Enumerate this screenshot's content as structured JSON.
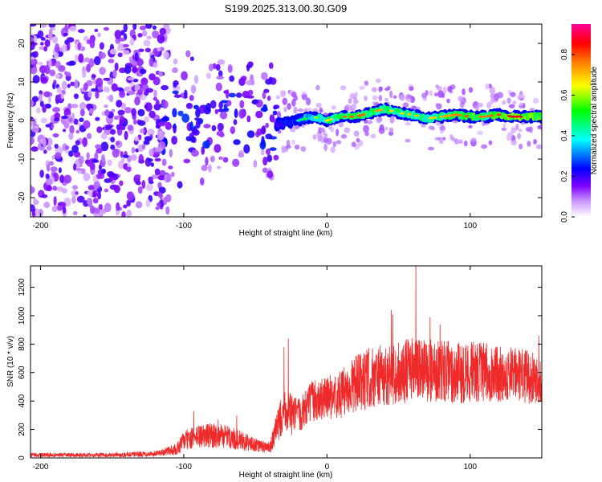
{
  "figure_title": "S199.2025.313.00.30.G09",
  "colors": {
    "snr_line": "#ee2a2a",
    "frame": "#000000"
  },
  "chart_data": [
    {
      "type": "heatmap",
      "title": "S199.2025.313.00.30.G09",
      "xlabel": "Height of straight line (km)",
      "ylabel": "Frequency (Hz)",
      "xlim": [
        -207,
        150
      ],
      "ylim": [
        -25,
        25
      ],
      "xticks": [
        -200,
        -100,
        0,
        100
      ],
      "xtick_labels": [
        "-200",
        "-100",
        "0",
        "100"
      ],
      "yticks": [
        -20,
        -10,
        0,
        10,
        20
      ],
      "ytick_labels": [
        "-20",
        "-10",
        "0",
        "10",
        "20"
      ],
      "colorbar": {
        "label": "Normalized spectral amplitude",
        "range": [
          0.0,
          0.95
        ],
        "ticks": [
          0.0,
          0.2,
          0.4,
          0.6,
          0.8
        ],
        "tick_labels": [
          "0.0",
          "0.2",
          "0.4",
          "0.6",
          "0.8"
        ],
        "colormap": [
          "#ffffff",
          "#cc99ff",
          "#7f00ff",
          "#0000ff",
          "#00ffff",
          "#00ff00",
          "#ffff00",
          "#ff7f00",
          "#ff0000",
          "#ff0099"
        ]
      },
      "ridge": {
        "description": "dominant frequency ridge near 0-2 Hz for heights above -35 km",
        "x": [
          -35,
          -20,
          -10,
          0,
          10,
          20,
          30,
          40,
          50,
          60,
          70,
          80,
          90,
          100,
          110,
          120,
          130,
          140,
          150
        ],
        "y": [
          -1,
          0,
          1,
          0,
          1,
          1,
          2,
          3,
          2,
          1.5,
          0.5,
          1,
          1.5,
          1,
          1,
          1.5,
          1,
          1,
          1
        ],
        "amplitude": [
          0.35,
          0.45,
          0.6,
          0.7,
          0.8,
          0.85,
          0.8,
          0.75,
          0.7,
          0.75,
          0.7,
          0.75,
          0.8,
          0.85,
          0.8,
          0.85,
          0.9,
          0.9,
          0.85
        ]
      }
    },
    {
      "type": "line",
      "xlabel": "Height of straight line (km)",
      "ylabel": "SNR (10 * v/v)",
      "xlim": [
        -207,
        150
      ],
      "ylim": [
        0,
        1350
      ],
      "xticks": [
        -200,
        -100,
        0,
        100
      ],
      "xtick_labels": [
        "-200",
        "-100",
        "0",
        "100"
      ],
      "yticks": [
        0,
        200,
        400,
        600,
        800,
        1000,
        1200
      ],
      "ytick_labels": [
        "0",
        "200",
        "400",
        "600",
        "800",
        "1000",
        "1200"
      ],
      "series": [
        {
          "name": "SNR",
          "color": "#ee2a2a",
          "envelope_x": [
            -207,
            -150,
            -120,
            -105,
            -100,
            -90,
            -80,
            -70,
            -60,
            -50,
            -40,
            -35,
            -30,
            -25,
            -20,
            -10,
            0,
            10,
            20,
            30,
            40,
            50,
            60,
            70,
            80,
            90,
            100,
            110,
            120,
            130,
            140,
            150
          ],
          "envelope_mean": [
            20,
            20,
            30,
            60,
            120,
            150,
            160,
            150,
            120,
            90,
            70,
            200,
            350,
            300,
            300,
            400,
            420,
            450,
            520,
            560,
            580,
            600,
            620,
            610,
            620,
            590,
            610,
            600,
            590,
            590,
            570,
            560
          ],
          "envelope_spread": [
            15,
            15,
            20,
            40,
            70,
            80,
            90,
            80,
            70,
            50,
            40,
            120,
            150,
            150,
            120,
            150,
            150,
            170,
            200,
            220,
            220,
            220,
            230,
            220,
            220,
            220,
            220,
            210,
            200,
            190,
            190,
            180
          ],
          "peaks": [
            {
              "x": -93,
              "y": 330
            },
            {
              "x": -76,
              "y": 270
            },
            {
              "x": -63,
              "y": 300
            },
            {
              "x": -27,
              "y": 840
            },
            {
              "x": -30,
              "y": 780
            },
            {
              "x": 45,
              "y": 1040
            },
            {
              "x": 62,
              "y": 1350
            },
            {
              "x": 46,
              "y": 1010
            },
            {
              "x": 72,
              "y": 990
            },
            {
              "x": 79,
              "y": 940
            },
            {
              "x": 148,
              "y": 860
            }
          ]
        }
      ]
    }
  ]
}
